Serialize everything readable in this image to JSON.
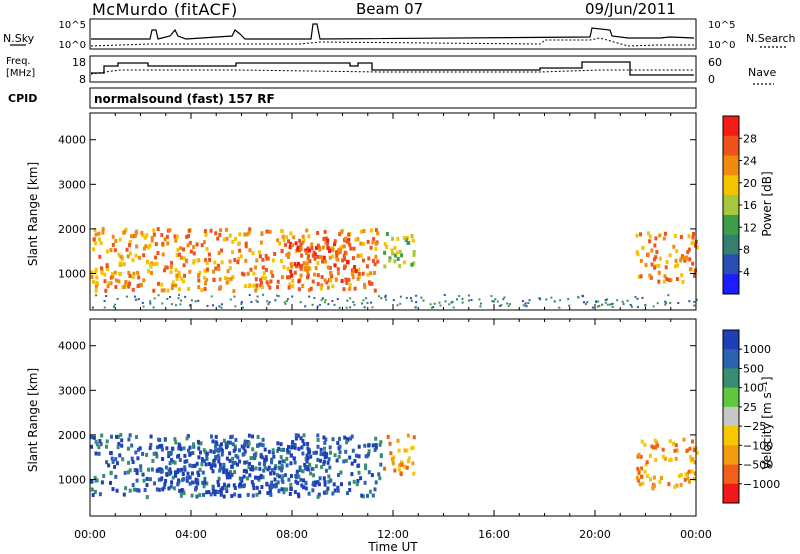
{
  "header": {
    "title": "McMurdo (fitACF)",
    "beam": "Beam 07",
    "date": "09/Jun/2011"
  },
  "panels": {
    "nsky_label": "N.Sky",
    "nsearch_label": "N.Search",
    "freq_label_line1": "Freq.",
    "freq_label_line2": "[MHz]",
    "nave_label": "Nave",
    "cpid_label": "CPID",
    "cpid_text": "normalsound (fast) 157 RF",
    "nsky_ticks": [
      "10^5",
      "10^0"
    ],
    "nsearch_ticks": [
      "10^5",
      "10^0"
    ],
    "freq_ticks": [
      "18",
      "8"
    ],
    "nave_ticks": [
      "60",
      "0"
    ]
  },
  "colors": {
    "power": [
      "#1c1cff",
      "#2a4fb4",
      "#357f6f",
      "#3e9c4a",
      "#a7c83a",
      "#f5c400",
      "#f28a10",
      "#f0521c",
      "#f21d14"
    ],
    "velocity": [
      "#1e3fb8",
      "#2a62b0",
      "#3a8c73",
      "#60c840",
      "#c8c8c8",
      "#f7c800",
      "#f29a10",
      "#f06018",
      "#f01818"
    ]
  },
  "chart_data": [
    {
      "type": "heatmap",
      "title": "",
      "xlabel": "Time UT",
      "ylabel": "Slant Range [km]",
      "xlim": [
        "00:00",
        "24:00"
      ],
      "ylim": [
        180,
        4600
      ],
      "xticks": [
        "00:00",
        "04:00",
        "08:00",
        "12:00",
        "16:00",
        "20:00",
        "00:00"
      ],
      "yticks": [
        1000,
        2000,
        3000,
        4000
      ],
      "colorbar": {
        "label": "Power [dB]",
        "ticks": [
          4,
          8,
          12,
          16,
          20,
          24,
          28
        ],
        "range": [
          0,
          32
        ]
      },
      "echo_regions": [
        {
          "t_start_h": 0.0,
          "t_end_h": 11.5,
          "range_km": [
            600,
            2000
          ],
          "level_db": 22
        },
        {
          "t_start_h": 7.8,
          "t_end_h": 10.5,
          "range_km": [
            800,
            1800
          ],
          "level_db": 28
        },
        {
          "t_start_h": 11.6,
          "t_end_h": 12.8,
          "range_km": [
            1100,
            2000
          ],
          "level_db": 14
        },
        {
          "t_start_h": 21.6,
          "t_end_h": 24.0,
          "range_km": [
            800,
            1900
          ],
          "level_db": 22
        },
        {
          "t_start_h": 0.0,
          "t_end_h": 24.0,
          "range_km": [
            200,
            500
          ],
          "level_db": 6
        }
      ]
    },
    {
      "type": "heatmap",
      "title": "",
      "xlabel": "Time UT",
      "ylabel": "Slant Range [km]",
      "xlim": [
        "00:00",
        "24:00"
      ],
      "ylim": [
        180,
        4600
      ],
      "xticks": [
        "00:00",
        "04:00",
        "08:00",
        "12:00",
        "16:00",
        "20:00",
        "00:00"
      ],
      "yticks": [
        1000,
        2000,
        3000,
        4000
      ],
      "colorbar": {
        "label": "Velocity [m s⁻¹]",
        "ticks": [
          "1000",
          "500",
          "100",
          "25",
          "−25",
          "−100",
          "−500",
          "−1000"
        ]
      },
      "echo_regions": [
        {
          "t_start_h": 0.0,
          "t_end_h": 11.5,
          "range_km": [
            600,
            2000
          ],
          "velocity_ms": 300
        },
        {
          "t_start_h": 2.5,
          "t_end_h": 9.5,
          "range_km": [
            700,
            1800
          ],
          "velocity_ms": 800
        },
        {
          "t_start_h": 11.6,
          "t_end_h": 12.8,
          "range_km": [
            1100,
            2000
          ],
          "velocity_ms": -150
        },
        {
          "t_start_h": 21.6,
          "t_end_h": 24.0,
          "range_km": [
            800,
            1900
          ],
          "velocity_ms": -150
        }
      ]
    }
  ]
}
